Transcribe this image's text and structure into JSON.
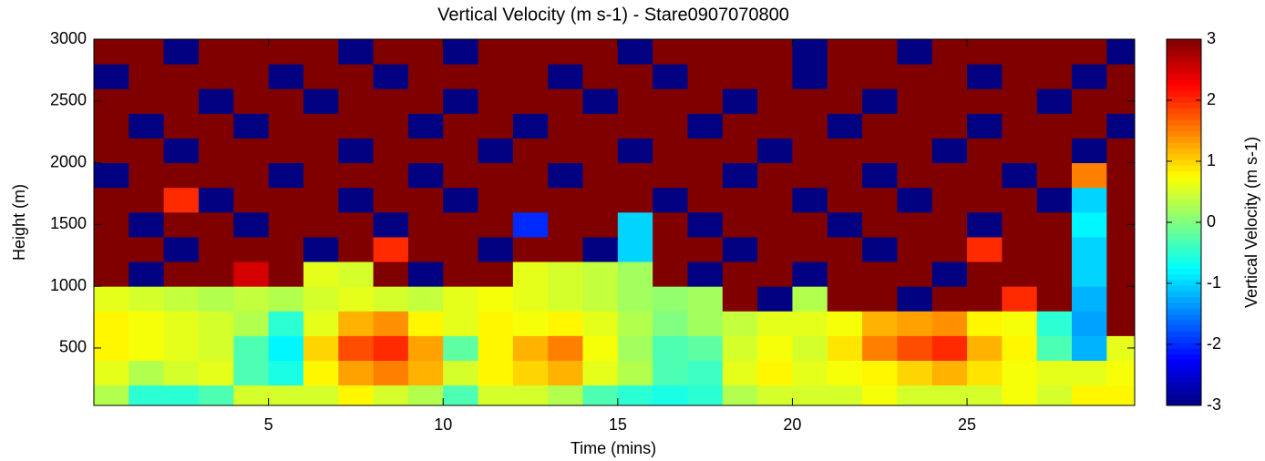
{
  "chart_data": {
    "type": "heatmap",
    "title": "Vertical Velocity (m s-1) - Stare0907070800",
    "xlabel": "Time (mins)",
    "ylabel": "Height (m)",
    "colorbar_label": "Vertical Velocity (m s-1)",
    "colormap": "jet",
    "xlim": [
      0,
      29.8
    ],
    "ylim": [
      35,
      3000
    ],
    "xticks": [
      5,
      10,
      15,
      20,
      25
    ],
    "yticks": [
      500,
      1000,
      1500,
      2000,
      2500,
      3000
    ],
    "clim": [
      -3,
      3
    ],
    "cticks": [
      -3,
      -2,
      -1,
      0,
      1,
      2,
      3
    ],
    "x": [
      0.5,
      1.5,
      2.5,
      3.5,
      4.5,
      5.5,
      6.5,
      7.5,
      8.5,
      9.5,
      10.5,
      11.5,
      12.5,
      13.5,
      14.5,
      15.5,
      16.5,
      17.5,
      18.5,
      19.5,
      20.5,
      21.5,
      22.5,
      23.5,
      24.5,
      25.5,
      26.5,
      27.5,
      28.5,
      29.5
    ],
    "y": [
      100,
      300,
      500,
      700,
      900,
      1100,
      1300,
      1500,
      1700,
      1900,
      2100,
      2300,
      2500,
      2700,
      2900
    ],
    "z": [
      [
        0.3,
        -0.5,
        -0.5,
        -0.3,
        0.5,
        0.5,
        0.5,
        0.8,
        0.5,
        0.3,
        -0.3,
        0.5,
        0.5,
        0.3,
        -0.3,
        -0.5,
        -0.6,
        -0.5,
        0.3,
        0.5,
        0.5,
        0.5,
        0.7,
        0.5,
        0.5,
        0.5,
        0.7,
        0.5,
        0.8,
        0.8
      ],
      [
        0.6,
        0.3,
        0.5,
        0.6,
        -0.3,
        -0.6,
        0.8,
        1.3,
        1.5,
        1.2,
        0.5,
        0.8,
        1.0,
        1.2,
        0.6,
        0.3,
        -0.3,
        -0.4,
        0.6,
        0.8,
        0.6,
        0.7,
        0.8,
        1.0,
        1.2,
        0.9,
        0.7,
        0.6,
        0.6,
        0.7
      ],
      [
        0.8,
        0.7,
        0.6,
        0.5,
        -0.3,
        -0.8,
        1.0,
        1.8,
        2.0,
        1.3,
        -0.2,
        0.8,
        1.2,
        1.5,
        0.7,
        0.2,
        -0.3,
        -0.2,
        0.5,
        0.7,
        0.5,
        0.9,
        1.5,
        1.8,
        2.0,
        1.2,
        0.8,
        -0.3,
        -1.2,
        0.6
      ],
      [
        0.8,
        0.7,
        0.6,
        0.5,
        0.3,
        -0.5,
        0.6,
        1.2,
        1.4,
        0.8,
        0.6,
        0.8,
        0.7,
        0.8,
        0.6,
        0.3,
        0,
        0.2,
        0.4,
        0.6,
        0.6,
        0.7,
        1.2,
        1.3,
        1.4,
        0.8,
        0.7,
        -0.5,
        -1.3,
        3
      ],
      [
        0.6,
        0.5,
        0.4,
        0.3,
        0.4,
        0.3,
        0.5,
        0.6,
        0.5,
        0.4,
        0.6,
        0.7,
        0.6,
        0.5,
        0.4,
        0.2,
        0.1,
        0.2,
        3,
        -3,
        0.3,
        3,
        3,
        -3,
        3,
        3,
        2,
        3,
        -1.2,
        3
      ],
      [
        3,
        -3,
        3,
        3,
        2.5,
        3,
        0.6,
        0.5,
        3,
        -3,
        3,
        3,
        0.6,
        0.5,
        0.4,
        0.2,
        3,
        -3,
        3,
        3,
        -3,
        3,
        3,
        3,
        -3,
        3,
        3,
        3,
        -1,
        3
      ],
      [
        3,
        3,
        -3,
        3,
        3,
        3,
        -3,
        3,
        2,
        3,
        3,
        -3,
        3,
        3,
        -3,
        -1,
        3,
        3,
        -3,
        3,
        3,
        3,
        -3,
        3,
        3,
        2,
        3,
        3,
        -1,
        3
      ],
      [
        3,
        -3,
        3,
        3,
        -3,
        3,
        3,
        3,
        -3,
        3,
        3,
        3,
        -2,
        3,
        3,
        -1,
        3,
        -3,
        3,
        3,
        3,
        -3,
        3,
        3,
        3,
        -3,
        3,
        3,
        -0.8,
        3
      ],
      [
        3,
        3,
        2,
        -3,
        3,
        3,
        3,
        -3,
        3,
        3,
        -3,
        3,
        3,
        3,
        3,
        3,
        -3,
        3,
        3,
        3,
        -3,
        3,
        3,
        -3,
        3,
        3,
        3,
        -3,
        -1,
        3
      ],
      [
        -3,
        3,
        3,
        3,
        3,
        -3,
        3,
        3,
        3,
        -3,
        3,
        3,
        3,
        -3,
        3,
        3,
        3,
        3,
        -3,
        3,
        3,
        3,
        -3,
        3,
        3,
        3,
        -3,
        3,
        1.5,
        3
      ],
      [
        3,
        3,
        -3,
        3,
        3,
        3,
        3,
        -3,
        3,
        3,
        3,
        -3,
        3,
        3,
        3,
        -3,
        3,
        3,
        3,
        -3,
        3,
        3,
        3,
        3,
        -3,
        3,
        3,
        3,
        -3,
        3
      ],
      [
        3,
        -3,
        3,
        3,
        -3,
        3,
        3,
        3,
        3,
        -3,
        3,
        3,
        -3,
        3,
        3,
        3,
        3,
        -3,
        3,
        3,
        3,
        -3,
        3,
        3,
        3,
        -3,
        3,
        3,
        3,
        -3
      ],
      [
        3,
        3,
        3,
        -3,
        3,
        3,
        -3,
        3,
        3,
        3,
        -3,
        3,
        3,
        3,
        -3,
        3,
        3,
        3,
        -3,
        3,
        3,
        3,
        -3,
        3,
        3,
        3,
        3,
        -3,
        3,
        3
      ],
      [
        -3,
        3,
        3,
        3,
        3,
        -3,
        3,
        3,
        -3,
        3,
        3,
        3,
        3,
        -3,
        3,
        3,
        -3,
        3,
        3,
        3,
        -3,
        3,
        3,
        3,
        3,
        -3,
        3,
        3,
        -3,
        3
      ],
      [
        3,
        3,
        -3,
        3,
        3,
        3,
        3,
        -3,
        3,
        3,
        -3,
        3,
        3,
        3,
        3,
        -3,
        3,
        3,
        3,
        3,
        -3,
        3,
        3,
        -3,
        3,
        3,
        3,
        3,
        3,
        -3
      ]
    ]
  }
}
